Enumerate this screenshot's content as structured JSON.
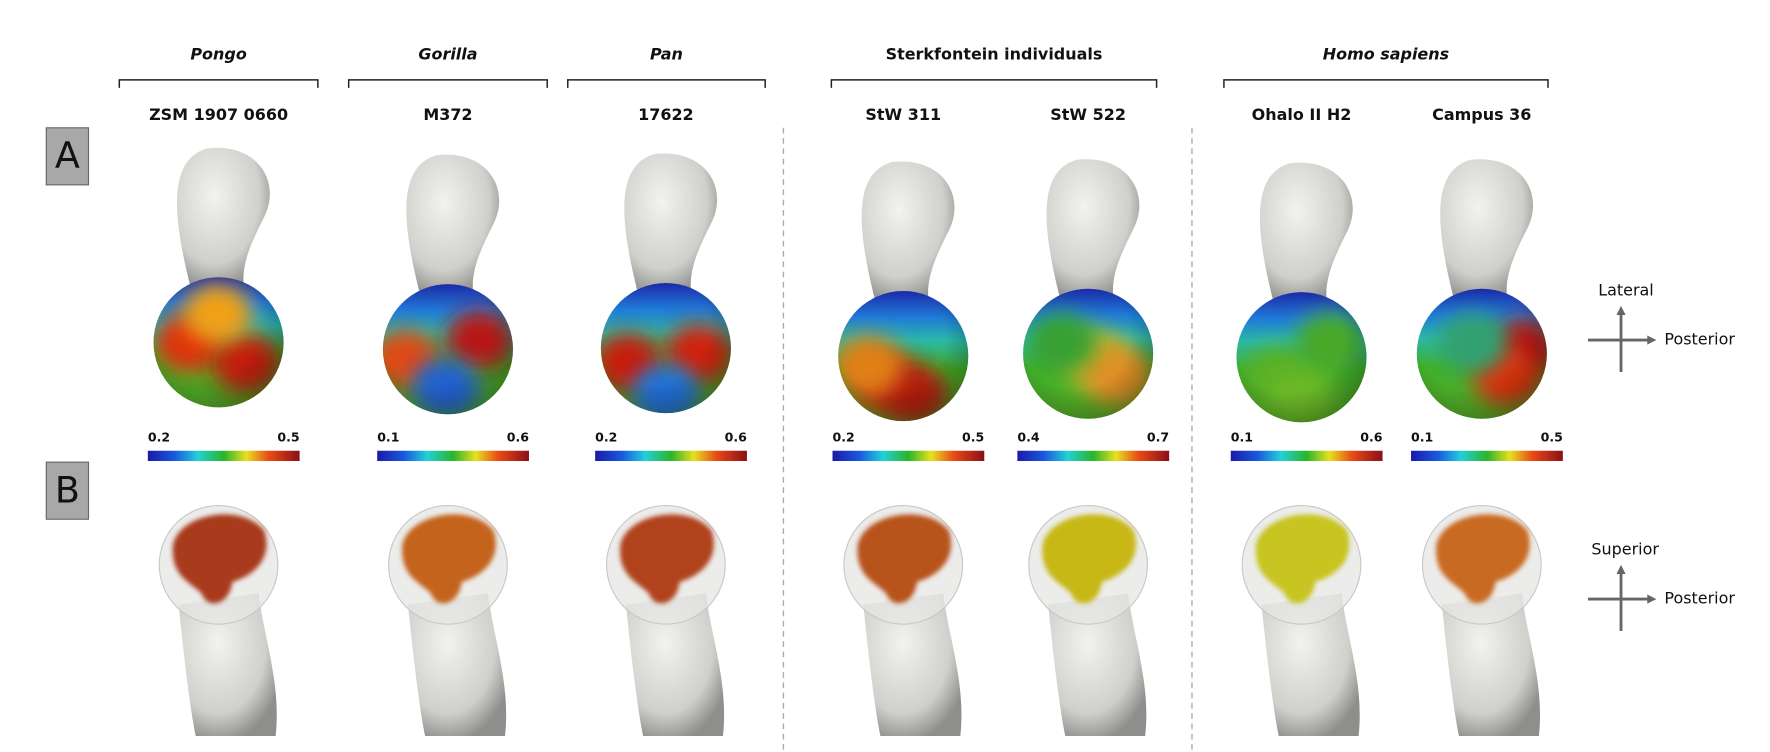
{
  "groups": [
    {
      "label": "Pongo",
      "italic": true
    },
    {
      "label": "Gorilla",
      "italic": true
    },
    {
      "label": "Pan",
      "italic": true
    },
    {
      "label": "Sterkfontein individuals",
      "italic": false
    },
    {
      "label": "Homo sapiens",
      "italic": true
    }
  ],
  "specimens": [
    {
      "label": "ZSM 1907 0660",
      "scale_min": "0.2",
      "scale_max": "0.5"
    },
    {
      "label": "M372",
      "scale_min": "0.1",
      "scale_max": "0.6"
    },
    {
      "label": "17622",
      "scale_min": "0.2",
      "scale_max": "0.6"
    },
    {
      "label": "StW 311",
      "scale_min": "0.2",
      "scale_max": "0.5"
    },
    {
      "label": "StW 522",
      "scale_min": "0.4",
      "scale_max": "0.7"
    },
    {
      "label": "Ohalo II H2",
      "scale_min": "0.1",
      "scale_max": "0.6"
    },
    {
      "label": "Campus 36",
      "scale_min": "0.1",
      "scale_max": "0.5"
    }
  ],
  "panels": [
    "A",
    "B"
  ],
  "orientation_a": {
    "vertical": "Lateral",
    "horizontal": "Posterior"
  },
  "orientation_b": {
    "vertical": "Superior",
    "horizontal": "Posterior"
  }
}
